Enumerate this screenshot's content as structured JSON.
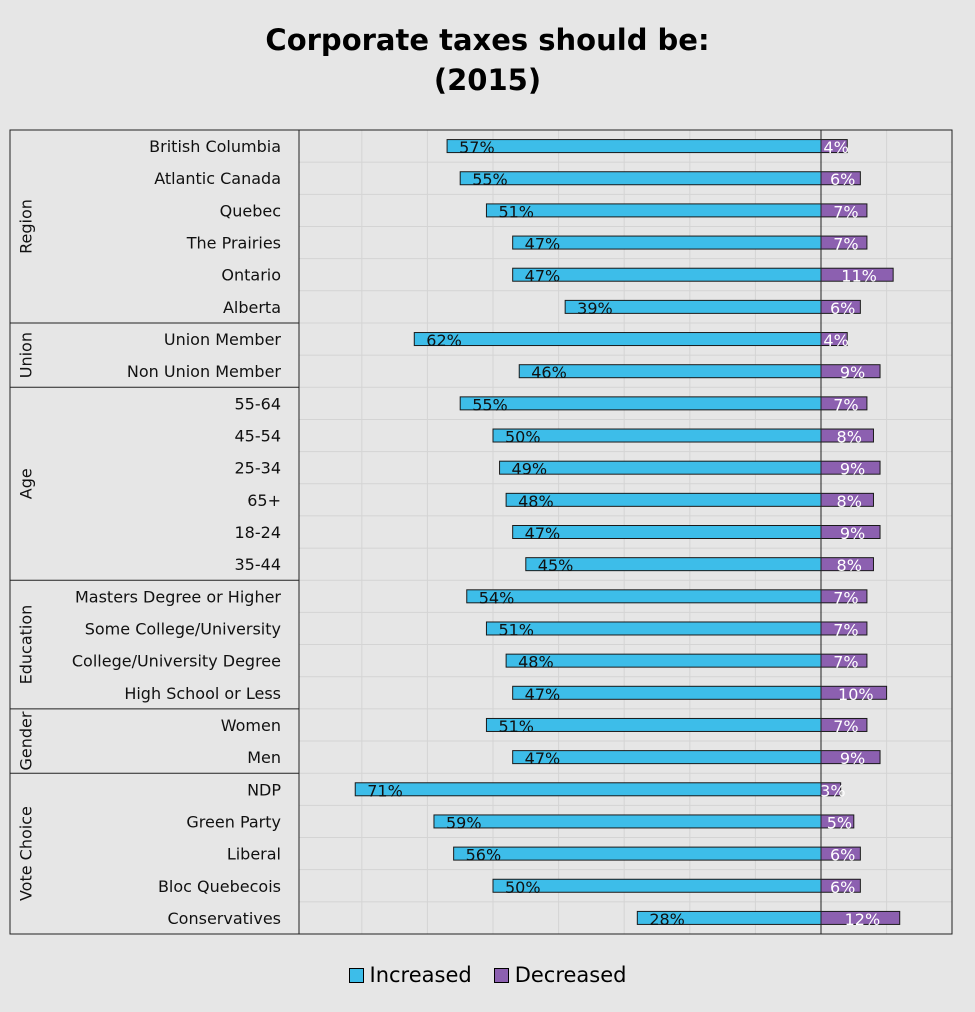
{
  "chart_data": {
    "type": "bar",
    "orientation": "horizontal",
    "stacked": "diverging",
    "title": "Corporate taxes should be:",
    "subtitle": "(2015)",
    "xlabel": "",
    "ylabel": "",
    "grid": true,
    "legend_position": "bottom",
    "colors": {
      "Increased": "#3dbde9",
      "Decreased": "#8c60b0"
    },
    "groups": [
      {
        "name": "Region",
        "rows": [
          {
            "label": "British Columbia",
            "increased": 57,
            "decreased": 4
          },
          {
            "label": "Atlantic Canada",
            "increased": 55,
            "decreased": 6
          },
          {
            "label": "Quebec",
            "increased": 51,
            "decreased": 7
          },
          {
            "label": "The Prairies",
            "increased": 47,
            "decreased": 7
          },
          {
            "label": "Ontario",
            "increased": 47,
            "decreased": 11
          },
          {
            "label": "Alberta",
            "increased": 39,
            "decreased": 6
          }
        ]
      },
      {
        "name": "Union",
        "rows": [
          {
            "label": "Union Member",
            "increased": 62,
            "decreased": 4
          },
          {
            "label": "Non Union Member",
            "increased": 46,
            "decreased": 9
          }
        ]
      },
      {
        "name": "Age",
        "rows": [
          {
            "label": "55-64",
            "increased": 55,
            "decreased": 7
          },
          {
            "label": "45-54",
            "increased": 50,
            "decreased": 8
          },
          {
            "label": "25-34",
            "increased": 49,
            "decreased": 9
          },
          {
            "label": "65+",
            "increased": 48,
            "decreased": 8
          },
          {
            "label": "18-24",
            "increased": 47,
            "decreased": 9
          },
          {
            "label": "35-44",
            "increased": 45,
            "decreased": 8
          }
        ]
      },
      {
        "name": "Education",
        "rows": [
          {
            "label": "Masters Degree or Higher",
            "increased": 54,
            "decreased": 7
          },
          {
            "label": "Some College/University",
            "increased": 51,
            "decreased": 7
          },
          {
            "label": "College/University Degree",
            "increased": 48,
            "decreased": 7
          },
          {
            "label": "High School or Less",
            "increased": 47,
            "decreased": 10
          }
        ]
      },
      {
        "name": "Gender",
        "rows": [
          {
            "label": "Women",
            "increased": 51,
            "decreased": 7
          },
          {
            "label": "Men",
            "increased": 47,
            "decreased": 9
          }
        ]
      },
      {
        "name": "Vote Choice",
        "rows": [
          {
            "label": "NDP",
            "increased": 71,
            "decreased": 3
          },
          {
            "label": "Green Party",
            "increased": 59,
            "decreased": 5
          },
          {
            "label": "Liberal",
            "increased": 56,
            "decreased": 6
          },
          {
            "label": "Bloc Quebecois",
            "increased": 50,
            "decreased": 6
          },
          {
            "label": "Conservatives",
            "increased": 28,
            "decreased": 12
          }
        ]
      }
    ],
    "legend": [
      "Increased",
      "Decreased"
    ]
  }
}
